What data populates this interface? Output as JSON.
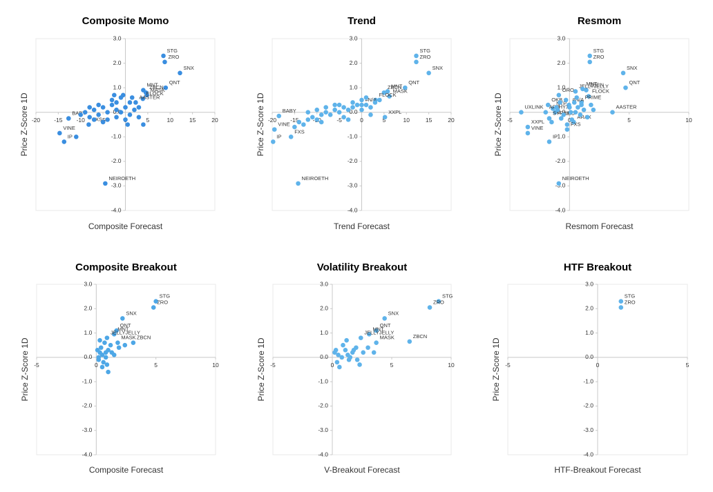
{
  "chart_data": [
    {
      "type": "scatter",
      "title": "Composite Momo",
      "x_label": "Composite Forecast",
      "y_label": "Price Z-Score 1D",
      "xlim": [
        -20,
        20
      ],
      "ylim": [
        -4,
        3
      ],
      "xticks": [
        -20,
        -15,
        -10,
        -5,
        0,
        5,
        10,
        15,
        20
      ],
      "yticks": [
        {
          "value": 3,
          "label": "3.0"
        },
        {
          "value": 2,
          "label": "2.0"
        },
        {
          "value": 1,
          "label": "1.0"
        },
        {
          "value": 0,
          "label": "0.0"
        },
        {
          "value": -1,
          "label": "-1.0"
        },
        {
          "value": -2,
          "label": "-2.0"
        },
        {
          "value": -3,
          "label": "-3.0"
        },
        {
          "value": -4,
          "label": "-4.0"
        }
      ],
      "series": [
        {
          "color": "#3a8ee0",
          "labels": [
            "STG",
            "ZRO",
            "SNX",
            "QNT",
            "MNT",
            "ZBCN",
            "MASK",
            "FLOCK",
            "AASTER",
            "BABY",
            "VINE",
            "IP",
            "FXS",
            "NEIROETH"
          ],
          "x": [
            8.5,
            8.8,
            12.2,
            9.0,
            4.0,
            4.6,
            4.8,
            3.9,
            2.3,
            -12.7,
            -14.7,
            -13.7,
            -8.2,
            -4.5
          ],
          "y": [
            2.3,
            2.05,
            1.6,
            1.0,
            0.9,
            0.8,
            0.7,
            0.55,
            0.4,
            -0.25,
            -0.85,
            -1.2,
            -0.5,
            -2.9
          ]
        },
        {
          "color": "#3a8ee0",
          "x": [
            -10,
            -9,
            -8,
            -7,
            -6,
            -5,
            -4,
            -3,
            -2,
            -1,
            0,
            1,
            2,
            -6,
            -4,
            -2,
            0,
            1,
            3,
            -3,
            -1,
            -5,
            -7,
            -11,
            0.5,
            4,
            -8,
            -2,
            1.5,
            -0.5,
            3,
            -2.5
          ],
          "y": [
            -0.1,
            0,
            -0.2,
            0.1,
            -0.1,
            0.2,
            0,
            0.3,
            0.1,
            0,
            0.2,
            -0.1,
            0.1,
            0.3,
            -0.3,
            -0.2,
            -0.3,
            0.4,
            0.2,
            0.5,
            0.6,
            -0.4,
            -0.3,
            -1,
            -0.5,
            -0.5,
            0.2,
            0.4,
            0.6,
            0.7,
            -0.2,
            0.7
          ]
        }
      ]
    },
    {
      "type": "scatter",
      "title": "Trend",
      "x_label": "Trend Forecast",
      "y_label": "Price Z-Score 1D",
      "xlim": [
        -20,
        20
      ],
      "ylim": [
        -4,
        3
      ],
      "xticks": [
        -20,
        -15,
        -10,
        -5,
        0,
        5,
        10,
        15,
        20
      ],
      "yticks": [
        {
          "value": 3,
          "label": "3.0"
        },
        {
          "value": 2,
          "label": "2.0"
        },
        {
          "value": 1,
          "label": "1.0"
        },
        {
          "value": 0,
          "label": "0.0"
        },
        {
          "value": -1,
          "label": "-1.0"
        },
        {
          "value": -2,
          "label": "-2.0"
        },
        {
          "value": -3,
          "label": "-3.0"
        },
        {
          "value": -4,
          "label": "-4.0"
        }
      ],
      "series": [
        {
          "color": "#5fb3ea",
          "labels": [
            "STG",
            "ZRO",
            "SNX",
            "QNT",
            "ZBCN",
            "MNT",
            "MASK",
            "FLOCK",
            "#N/A",
            "XXPL",
            "BABY",
            "VINE",
            "IP",
            "FXS",
            "NEIROETH"
          ],
          "x": [
            12.2,
            12.2,
            15,
            9.7,
            5.0,
            5.8,
            6.2,
            3.1,
            0,
            5.2,
            -18.5,
            -19.5,
            -19.8,
            -15.8,
            -14.2
          ],
          "y": [
            2.3,
            2.05,
            1.6,
            1.0,
            0.8,
            0.85,
            0.65,
            0.5,
            0.3,
            -0.2,
            -0.15,
            -0.7,
            -1.2,
            -1.0,
            -2.9
          ]
        },
        {
          "color": "#5fb3ea",
          "x": [
            -15,
            -14,
            -13,
            -12,
            -11,
            -10,
            -9,
            -8,
            -7,
            -6,
            -5,
            -4,
            -3,
            -2,
            -1,
            0,
            1,
            2,
            3,
            4,
            -12,
            -10,
            -8,
            -6,
            -4,
            -2,
            0,
            2,
            -9,
            -5,
            -3,
            1
          ],
          "y": [
            -0.6,
            -0.4,
            -0.5,
            -0.3,
            -0.2,
            -0.3,
            -0.1,
            0,
            -0.1,
            0.1,
            0,
            0.2,
            0.1,
            0.2,
            0.3,
            0.1,
            0.3,
            0.2,
            0.4,
            0.5,
            0,
            0.1,
            0.2,
            0.3,
            -0.2,
            0.4,
            0.5,
            -0.1,
            -0.4,
            0.3,
            -0.3,
            0.6
          ]
        }
      ]
    },
    {
      "type": "scatter",
      "title": "Resmom",
      "x_label": "Resmom Forecast",
      "y_label": "Price Z-Score 1D",
      "xlim": [
        -5,
        10
      ],
      "ylim": [
        -4,
        3
      ],
      "xticks": [
        -5,
        0,
        5,
        10
      ],
      "yticks": [
        {
          "value": 3,
          "label": "3.0"
        },
        {
          "value": 2,
          "label": "2.0"
        },
        {
          "value": 1,
          "label": "1.0"
        },
        {
          "value": 0,
          "label": "0.0"
        },
        {
          "value": -1,
          "label": "-1.0"
        },
        {
          "value": -2,
          "label": "-2.0"
        },
        {
          "value": -3,
          "label": "-3.0"
        },
        {
          "value": -4,
          "label": "-4.0"
        }
      ],
      "series": [
        {
          "color": "#5fb3ea",
          "labels": [
            "STG",
            "ZRO",
            "SNX",
            "QNT",
            "ORO",
            "JELLYJELLY",
            "MNT",
            "ZBCN",
            "FLOCK",
            "PRIME",
            "#N/A",
            "OKB",
            "NTP",
            "ARB",
            "HYX",
            "SYRUP",
            "LEO",
            "ARAX",
            "FXS",
            "AASTER",
            "UXLINK",
            "XXPL",
            "VINE",
            "IP",
            "NEIROETH"
          ],
          "x": [
            1.7,
            1.7,
            4.5,
            4.7,
            -0.9,
            0.5,
            1.1,
            1.4,
            1.6,
            1.0,
            -0.05,
            -1.8,
            -1.4,
            -2.0,
            -1.2,
            -1.7,
            -0.7,
            0.35,
            -0.2,
            3.6,
            -4.05,
            -3.5,
            -3.5,
            -1.7,
            -0.9
          ],
          "y": [
            2.3,
            2.05,
            1.6,
            1.0,
            0.7,
            0.85,
            0.95,
            0.9,
            0.65,
            0.4,
            0.3,
            0.3,
            0.15,
            0,
            0,
            -0.25,
            -0.25,
            -0.4,
            -0.7,
            0,
            0,
            -0.6,
            -0.85,
            -1.2,
            -2.9
          ]
        },
        {
          "color": "#5fb3ea",
          "x": [
            -1,
            -0.5,
            0,
            0.5,
            1,
            1.5,
            2,
            -0.8,
            -0.3,
            0.2,
            0.7,
            1.2,
            -1.5,
            -0.2,
            0.4,
            0.9,
            1.8,
            -1.1,
            0.1,
            0.6
          ],
          "y": [
            0.1,
            -0.1,
            0.2,
            0,
            0.3,
            -0.2,
            0.1,
            0.4,
            0.5,
            -0.3,
            0.2,
            0.1,
            -0.4,
            -0.5,
            0.4,
            -0.1,
            0.3,
            0.2,
            0,
            0.6
          ]
        }
      ]
    },
    {
      "type": "scatter",
      "title": "Composite Breakout",
      "x_label": "Composite Forecast",
      "y_label": "Price Z-Score 1D",
      "xlim": [
        -5,
        10
      ],
      "ylim": [
        -4,
        3
      ],
      "xticks": [
        -5,
        0,
        5,
        10
      ],
      "yticks": [
        {
          "value": 3,
          "label": "3.0"
        },
        {
          "value": 2,
          "label": "2.0"
        },
        {
          "value": 1,
          "label": "1.0"
        },
        {
          "value": 0,
          "label": "0.0"
        },
        {
          "value": -1,
          "label": "-1.0"
        },
        {
          "value": -2,
          "label": "-2.0"
        },
        {
          "value": -3,
          "label": "-3.0"
        },
        {
          "value": -4,
          "label": "-4.0"
        }
      ],
      "series": [
        {
          "color": "#4ea7e6",
          "labels": [
            "STG",
            "ZRO",
            "SNX",
            "QNT",
            "MNT",
            "JELLYJELLY",
            "MASK",
            "ZBCN"
          ],
          "x": [
            5.0,
            4.8,
            2.2,
            1.7,
            1.5,
            0.9,
            1.8,
            3.1
          ],
          "y": [
            2.3,
            2.05,
            1.6,
            1.1,
            0.95,
            0.8,
            0.6,
            0.6
          ]
        },
        {
          "color": "#4ea7e6",
          "x": [
            0.3,
            0.5,
            0.8,
            1,
            0.2,
            0.6,
            1.2,
            0.4,
            0.9,
            1.5,
            0.1,
            0.7,
            1.9,
            2.4,
            0.5,
            1.0,
            0.3,
            1.3,
            0.2,
            0.8
          ],
          "y": [
            0.2,
            0.1,
            0,
            0.3,
            -0.1,
            -0.2,
            0.5,
            0.4,
            -0.3,
            0.1,
            0.3,
            0.6,
            0.4,
            0.5,
            -0.4,
            -0.6,
            0.7,
            0.2,
            0,
            0.2
          ]
        }
      ]
    },
    {
      "type": "scatter",
      "title": "Volatility Breakout",
      "x_label": "V-Breakout Forecast",
      "y_label": "Price Z-Score 1D",
      "xlim": [
        -5,
        10
      ],
      "ylim": [
        -4,
        3
      ],
      "xticks": [
        -5,
        0,
        5,
        10
      ],
      "yticks": [
        {
          "value": 3,
          "label": "3.0"
        },
        {
          "value": 2,
          "label": "2.0"
        },
        {
          "value": 1,
          "label": "1.0"
        },
        {
          "value": 0,
          "label": "0.0"
        },
        {
          "value": -1,
          "label": "-1.0"
        },
        {
          "value": -2,
          "label": "-2.0"
        },
        {
          "value": -3,
          "label": "-3.0"
        },
        {
          "value": -4,
          "label": "-4.0"
        }
      ],
      "series": [
        {
          "color": "#5fb3ea",
          "labels": [
            "STG",
            "ZRO",
            "SNX",
            "QNT",
            "MNT",
            "JELLYJELLY",
            "MASK",
            "ZBCN"
          ],
          "x": [
            8.95,
            8.2,
            4.4,
            3.7,
            3.1,
            2.4,
            3.7,
            6.5
          ],
          "y": [
            2.3,
            2.05,
            1.6,
            1.1,
            0.95,
            0.8,
            0.6,
            0.65
          ]
        },
        {
          "color": "#5fb3ea",
          "x": [
            0.2,
            0.5,
            0.8,
            1.1,
            1.4,
            1.7,
            2.0,
            2.3,
            0.4,
            0.9,
            1.3,
            1.8,
            2.6,
            3.0,
            0.6,
            1.2,
            2.1,
            1.5,
            0.3,
            3.5
          ],
          "y": [
            0.2,
            0.1,
            0,
            0.3,
            -0.1,
            0.2,
            0.4,
            -0.3,
            -0.2,
            0.5,
            0.1,
            0.3,
            0.2,
            0.4,
            -0.4,
            0.7,
            -0.1,
            0,
            0.3,
            0.2
          ]
        }
      ]
    },
    {
      "type": "scatter",
      "title": "HTF Breakout",
      "x_label": "HTF-Breakout Forecast",
      "y_label": "Price Z-Score 1D",
      "xlim": [
        -5,
        5
      ],
      "ylim": [
        -4,
        3
      ],
      "xticks": [
        -5,
        0,
        5
      ],
      "yticks": [
        {
          "value": 3,
          "label": "3.0"
        },
        {
          "value": 2,
          "label": "2.0"
        },
        {
          "value": 1,
          "label": "1.0"
        },
        {
          "value": 0,
          "label": "0.0"
        },
        {
          "value": -1,
          "label": "-1.0"
        },
        {
          "value": -2,
          "label": "-2.0"
        },
        {
          "value": -3,
          "label": "-3.0"
        },
        {
          "value": -4,
          "label": "-4.0"
        }
      ],
      "series": [
        {
          "color": "#5fb3ea",
          "labels": [
            "STG",
            "ZRO"
          ],
          "x": [
            1.3,
            1.3
          ],
          "y": [
            2.3,
            2.05
          ]
        }
      ]
    }
  ]
}
